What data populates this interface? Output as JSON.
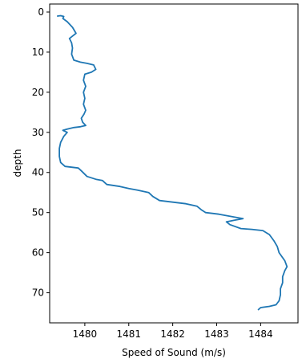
{
  "chart_data": {
    "type": "line",
    "title": "",
    "xlabel": "Speed of Sound (m/s)",
    "ylabel": "depth",
    "xlim": [
      1479.2,
      1484.85
    ],
    "ylim": [
      77.5,
      -2
    ],
    "y_inverted": true,
    "grid": false,
    "x_ticks": [
      1480,
      1481,
      1482,
      1483,
      1484
    ],
    "y_ticks": [
      0,
      10,
      20,
      30,
      40,
      50,
      60,
      70
    ],
    "series": [
      {
        "color": "#1f77b4",
        "points": [
          [
            1479.38,
            1.0
          ],
          [
            1479.45,
            0.9
          ],
          [
            1479.52,
            1.1
          ],
          [
            1479.5,
            1.6
          ],
          [
            1479.6,
            2.4
          ],
          [
            1479.72,
            3.8
          ],
          [
            1479.8,
            5.3
          ],
          [
            1479.72,
            6.0
          ],
          [
            1479.65,
            6.6
          ],
          [
            1479.7,
            7.7
          ],
          [
            1479.72,
            9.0
          ],
          [
            1479.7,
            10.5
          ],
          [
            1479.75,
            12.0
          ],
          [
            1479.9,
            12.5
          ],
          [
            1480.05,
            12.8
          ],
          [
            1480.2,
            13.2
          ],
          [
            1480.25,
            14.3
          ],
          [
            1480.15,
            15.0
          ],
          [
            1480.0,
            15.5
          ],
          [
            1479.97,
            17.0
          ],
          [
            1480.02,
            18.5
          ],
          [
            1479.97,
            20.0
          ],
          [
            1480.0,
            21.5
          ],
          [
            1479.97,
            23.0
          ],
          [
            1480.02,
            24.5
          ],
          [
            1479.98,
            25.5
          ],
          [
            1479.92,
            26.5
          ],
          [
            1479.95,
            27.5
          ],
          [
            1480.02,
            28.3
          ],
          [
            1479.9,
            28.6
          ],
          [
            1479.75,
            28.8
          ],
          [
            1479.6,
            29.2
          ],
          [
            1479.5,
            29.5
          ],
          [
            1479.6,
            30.0
          ],
          [
            1479.52,
            31.0
          ],
          [
            1479.45,
            32.5
          ],
          [
            1479.42,
            34.0
          ],
          [
            1479.42,
            36.0
          ],
          [
            1479.45,
            37.5
          ],
          [
            1479.55,
            38.5
          ],
          [
            1479.7,
            38.7
          ],
          [
            1479.85,
            38.9
          ],
          [
            1479.92,
            39.6
          ],
          [
            1480.05,
            41.0
          ],
          [
            1480.25,
            41.7
          ],
          [
            1480.4,
            42.0
          ],
          [
            1480.5,
            43.0
          ],
          [
            1480.8,
            43.5
          ],
          [
            1481.0,
            44.0
          ],
          [
            1481.2,
            44.4
          ],
          [
            1481.45,
            45.0
          ],
          [
            1481.55,
            46.0
          ],
          [
            1481.7,
            47.0
          ],
          [
            1482.0,
            47.4
          ],
          [
            1482.3,
            47.8
          ],
          [
            1482.55,
            48.4
          ],
          [
            1482.65,
            49.3
          ],
          [
            1482.75,
            50.0
          ],
          [
            1483.05,
            50.4
          ],
          [
            1483.35,
            51.0
          ],
          [
            1483.6,
            51.5
          ],
          [
            1483.4,
            51.9
          ],
          [
            1483.22,
            52.3
          ],
          [
            1483.3,
            53.0
          ],
          [
            1483.55,
            54.0
          ],
          [
            1483.8,
            54.2
          ],
          [
            1484.05,
            54.5
          ],
          [
            1484.2,
            55.5
          ],
          [
            1484.3,
            57.0
          ],
          [
            1484.38,
            58.5
          ],
          [
            1484.42,
            60.0
          ],
          [
            1484.55,
            62.0
          ],
          [
            1484.6,
            63.5
          ],
          [
            1484.55,
            64.5
          ],
          [
            1484.5,
            66.0
          ],
          [
            1484.5,
            67.5
          ],
          [
            1484.45,
            69.0
          ],
          [
            1484.45,
            70.5
          ],
          [
            1484.42,
            72.0
          ],
          [
            1484.35,
            73.0
          ],
          [
            1484.2,
            73.4
          ],
          [
            1484.0,
            73.7
          ],
          [
            1483.95,
            74.2
          ]
        ]
      }
    ]
  }
}
